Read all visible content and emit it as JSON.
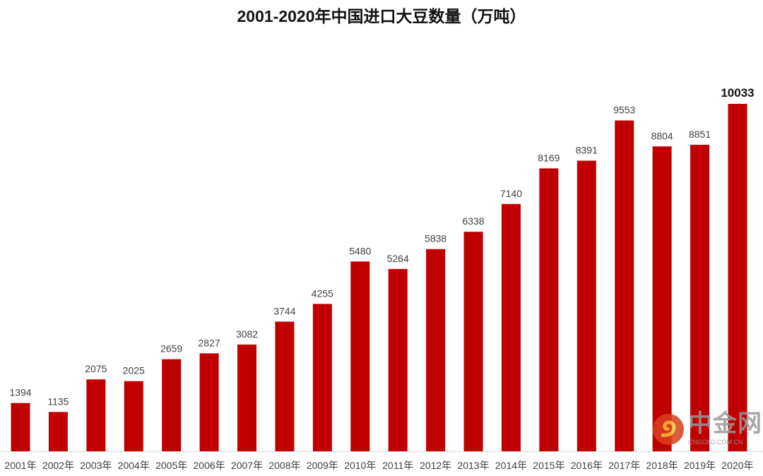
{
  "chart_data": {
    "type": "bar",
    "title": "2001-2020年中国进口大豆数量（万吨）",
    "categories": [
      "2001年",
      "2002年",
      "2003年",
      "2004年",
      "2005年",
      "2006年",
      "2007年",
      "2008年",
      "2009年",
      "2010年",
      "2011年",
      "2012年",
      "2013年",
      "2014年",
      "2015年",
      "2016年",
      "2017年",
      "2018年",
      "2019年",
      "2020年"
    ],
    "values": [
      1394,
      1135,
      2075,
      2025,
      2659,
      2827,
      3082,
      3744,
      4255,
      5480,
      5264,
      5838,
      6338,
      7140,
      8169,
      8391,
      9553,
      8804,
      8851,
      10033
    ],
    "ylim": [
      0,
      10033
    ],
    "grid": false,
    "bar_color": "#c00000",
    "highlight_last_label": true
  },
  "watermark": {
    "text": "中金网",
    "sub": "CNGOLD.COM.CN"
  }
}
